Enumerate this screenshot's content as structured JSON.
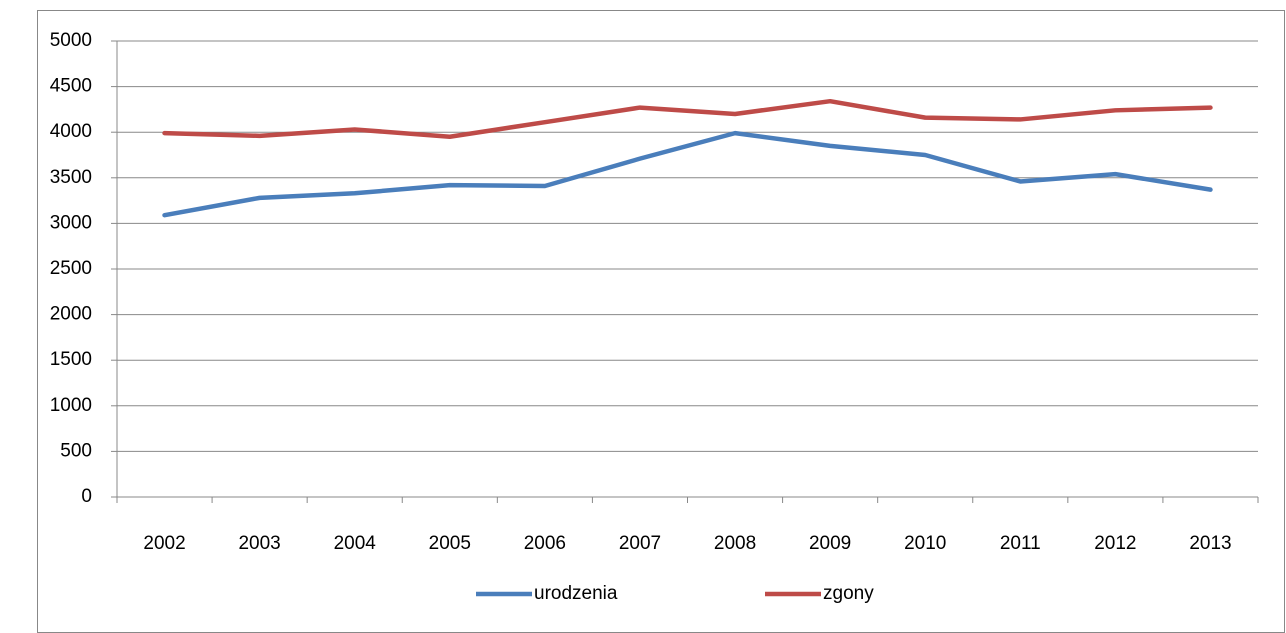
{
  "chart_data": {
    "type": "line",
    "categories": [
      "2002",
      "2003",
      "2004",
      "2005",
      "2006",
      "2007",
      "2008",
      "2009",
      "2010",
      "2011",
      "2012",
      "2013"
    ],
    "series": [
      {
        "name": "urodzenia",
        "color": "#4a7ebb",
        "values": [
          3090,
          3280,
          3330,
          3420,
          3410,
          3710,
          3990,
          3850,
          3750,
          3460,
          3540,
          3370
        ]
      },
      {
        "name": "zgony",
        "color": "#be4b48",
        "values": [
          3990,
          3960,
          4030,
          3950,
          4110,
          4270,
          4200,
          4340,
          4160,
          4140,
          4240,
          4270
        ]
      }
    ],
    "ylim": [
      0,
      5000
    ],
    "yticks": [
      0,
      500,
      1000,
      1500,
      2000,
      2500,
      3000,
      3500,
      4000,
      4500,
      5000
    ],
    "grid": true,
    "legend": "bottom"
  }
}
